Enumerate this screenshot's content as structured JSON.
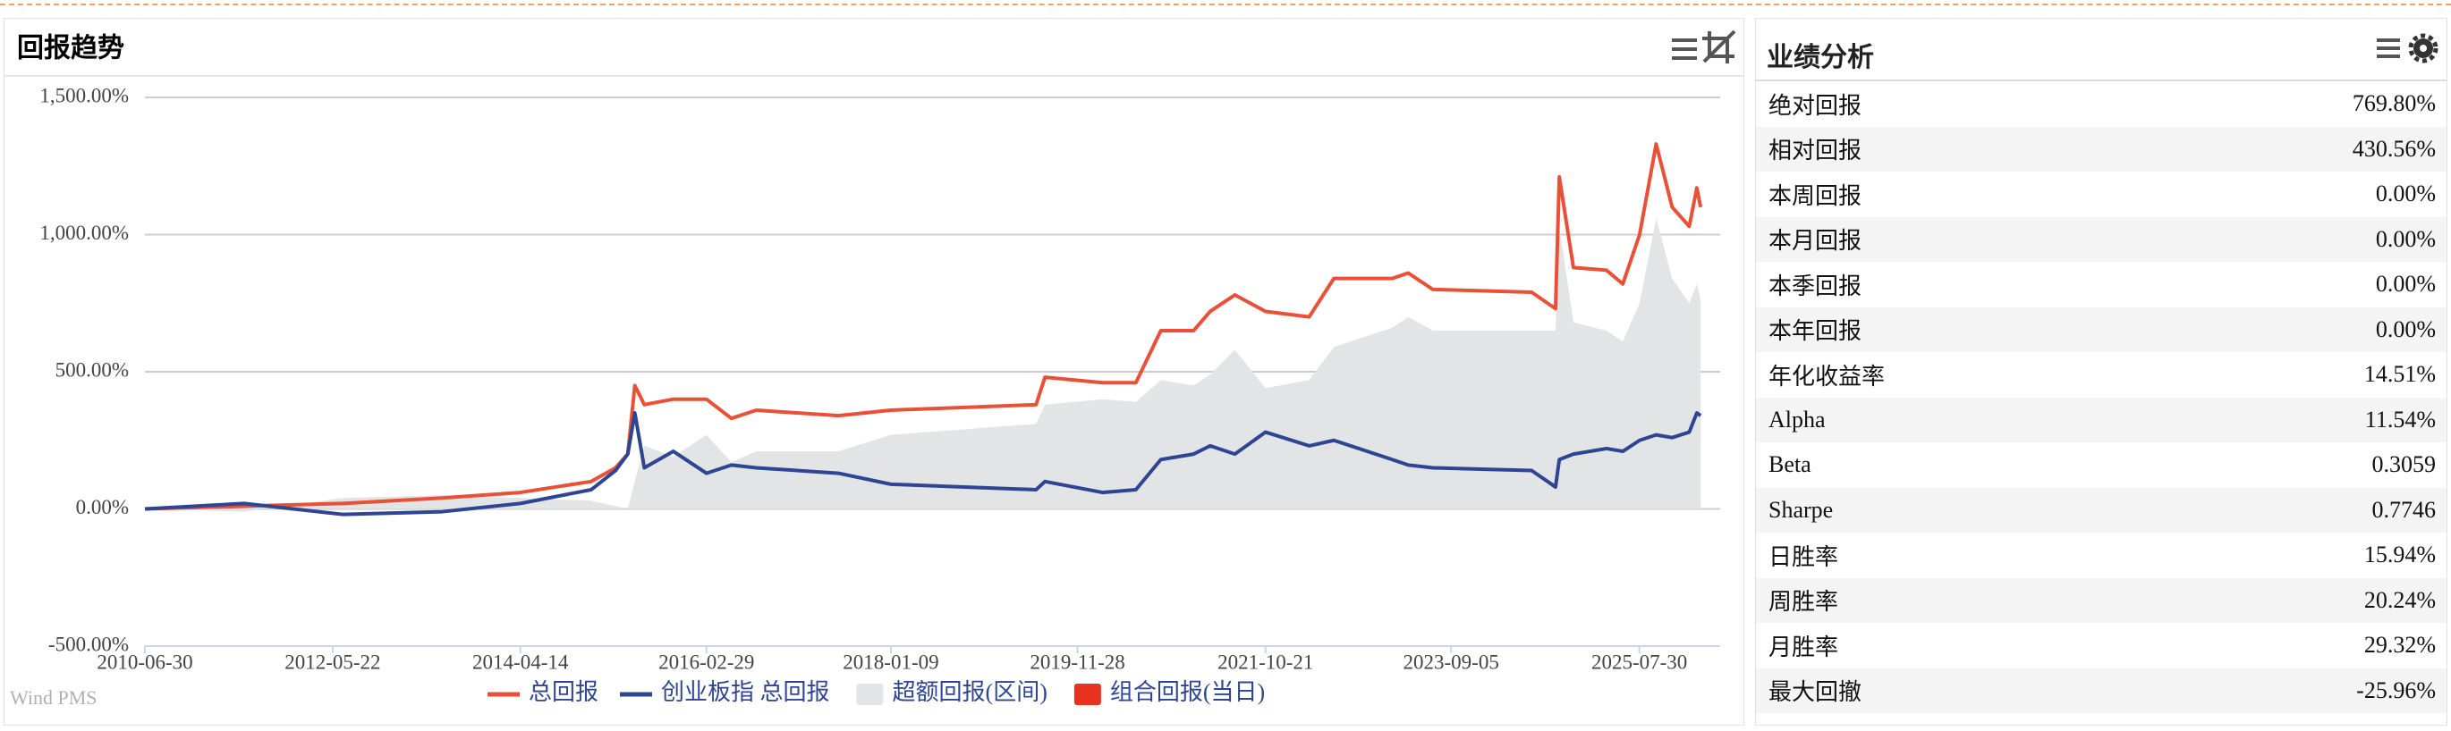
{
  "chart_data": {
    "type": "line",
    "title": "回报趋势",
    "watermark": "Wind PMS",
    "x": [
      "2010-06-30",
      "2011-06-30",
      "2012-06-30",
      "2013-06-30",
      "2014-04-14",
      "2014-12-31",
      "2015-03-31",
      "2015-05-15",
      "2015-06-10",
      "2015-07-15",
      "2015-10-30",
      "2016-02-29",
      "2016-05-31",
      "2016-08-31",
      "2017-06-30",
      "2018-01-09",
      "2019-06-28",
      "2019-07-31",
      "2020-02-28",
      "2020-06-30",
      "2020-09-30",
      "2021-01-29",
      "2021-03-31",
      "2021-06-30",
      "2021-10-21",
      "2022-03-31",
      "2022-06-30",
      "2023-01-31",
      "2023-03-31",
      "2023-06-30",
      "2024-06-28",
      "2024-09-24",
      "2024-10-08",
      "2024-11-29",
      "2025-03-31",
      "2025-05-30",
      "2025-07-31",
      "2025-09-30",
      "2025-11-28",
      "2026-01-30",
      "2026-02-27",
      "2026-03-13"
    ],
    "series": [
      {
        "name": "超额回报(区间)",
        "type": "area",
        "color": "#e3e4e6",
        "values": [
          0,
          -10,
          40,
          50,
          40,
          30,
          10,
          0,
          100,
          230,
          190,
          270,
          170,
          210,
          210,
          270,
          310,
          380,
          400,
          390,
          470,
          450,
          490,
          580,
          440,
          470,
          590,
          660,
          700,
          650,
          650,
          650,
          1030,
          680,
          650,
          610,
          750,
          1060,
          840,
          750,
          820,
          760
        ]
      },
      {
        "name": "组合回报(当日)",
        "type": "bar",
        "color": "#e8321f",
        "values": [
          0,
          0,
          0,
          0,
          0,
          0,
          0,
          0,
          0,
          0,
          0,
          0,
          0,
          0,
          0,
          0,
          0,
          0,
          0,
          0,
          0,
          0,
          0,
          0,
          0,
          0,
          0,
          0,
          0,
          0,
          0,
          0,
          0,
          0,
          0,
          0,
          0,
          0,
          0,
          0,
          0,
          0
        ]
      },
      {
        "name": "总回报",
        "type": "line",
        "color": "#e85038",
        "values": [
          0,
          10,
          20,
          40,
          60,
          100,
          150,
          200,
          450,
          380,
          400,
          400,
          330,
          360,
          340,
          360,
          380,
          480,
          460,
          460,
          650,
          650,
          720,
          780,
          720,
          700,
          840,
          840,
          860,
          800,
          790,
          730,
          1210,
          880,
          870,
          820,
          1000,
          1330,
          1100,
          1030,
          1170,
          1100
        ]
      },
      {
        "name": "创业板指 总回报",
        "type": "line",
        "color": "#2e4593",
        "values": [
          0,
          20,
          -20,
          -10,
          20,
          70,
          140,
          200,
          350,
          150,
          210,
          130,
          160,
          150,
          130,
          90,
          70,
          100,
          60,
          70,
          180,
          200,
          230,
          200,
          280,
          230,
          250,
          180,
          160,
          150,
          140,
          80,
          180,
          200,
          220,
          210,
          250,
          270,
          260,
          280,
          350,
          340
        ]
      }
    ],
    "legend_order": [
      2,
      3,
      0,
      1
    ],
    "xlim": [
      "2010-06-30",
      "2026-05-24"
    ],
    "xticks": [
      "2010-06-30",
      "2012-05-22",
      "2014-04-14",
      "2016-02-29",
      "2018-01-09",
      "2019-11-28",
      "2021-10-21",
      "2023-09-05",
      "2025-07-30"
    ],
    "ylim": [
      -500,
      1500
    ],
    "yticks": [
      {
        "value": -500,
        "label": "-500.00%"
      },
      {
        "value": 0,
        "label": "0.00%"
      },
      {
        "value": 500,
        "label": "500.00%"
      },
      {
        "value": 1000,
        "label": "1,000.00%"
      },
      {
        "value": 1500,
        "label": "1,500.00%"
      }
    ],
    "grid": true
  },
  "panel": {
    "title": "业绩分析",
    "rows": [
      [
        "绝对回报",
        "769.80%"
      ],
      [
        "相对回报",
        "430.56%"
      ],
      [
        "本周回报",
        "0.00%"
      ],
      [
        "本月回报",
        "0.00%"
      ],
      [
        "本季回报",
        "0.00%"
      ],
      [
        "本年回报",
        "0.00%"
      ],
      [
        "年化收益率",
        "14.51%"
      ],
      [
        "Alpha",
        "11.54%"
      ],
      [
        "Beta",
        "0.3059"
      ],
      [
        "Sharpe",
        "0.7746"
      ],
      [
        "日胜率",
        "15.94%"
      ],
      [
        "周胜率",
        "20.24%"
      ],
      [
        "月胜率",
        "29.32%"
      ],
      [
        "最大回撤",
        "-25.96%"
      ]
    ]
  }
}
